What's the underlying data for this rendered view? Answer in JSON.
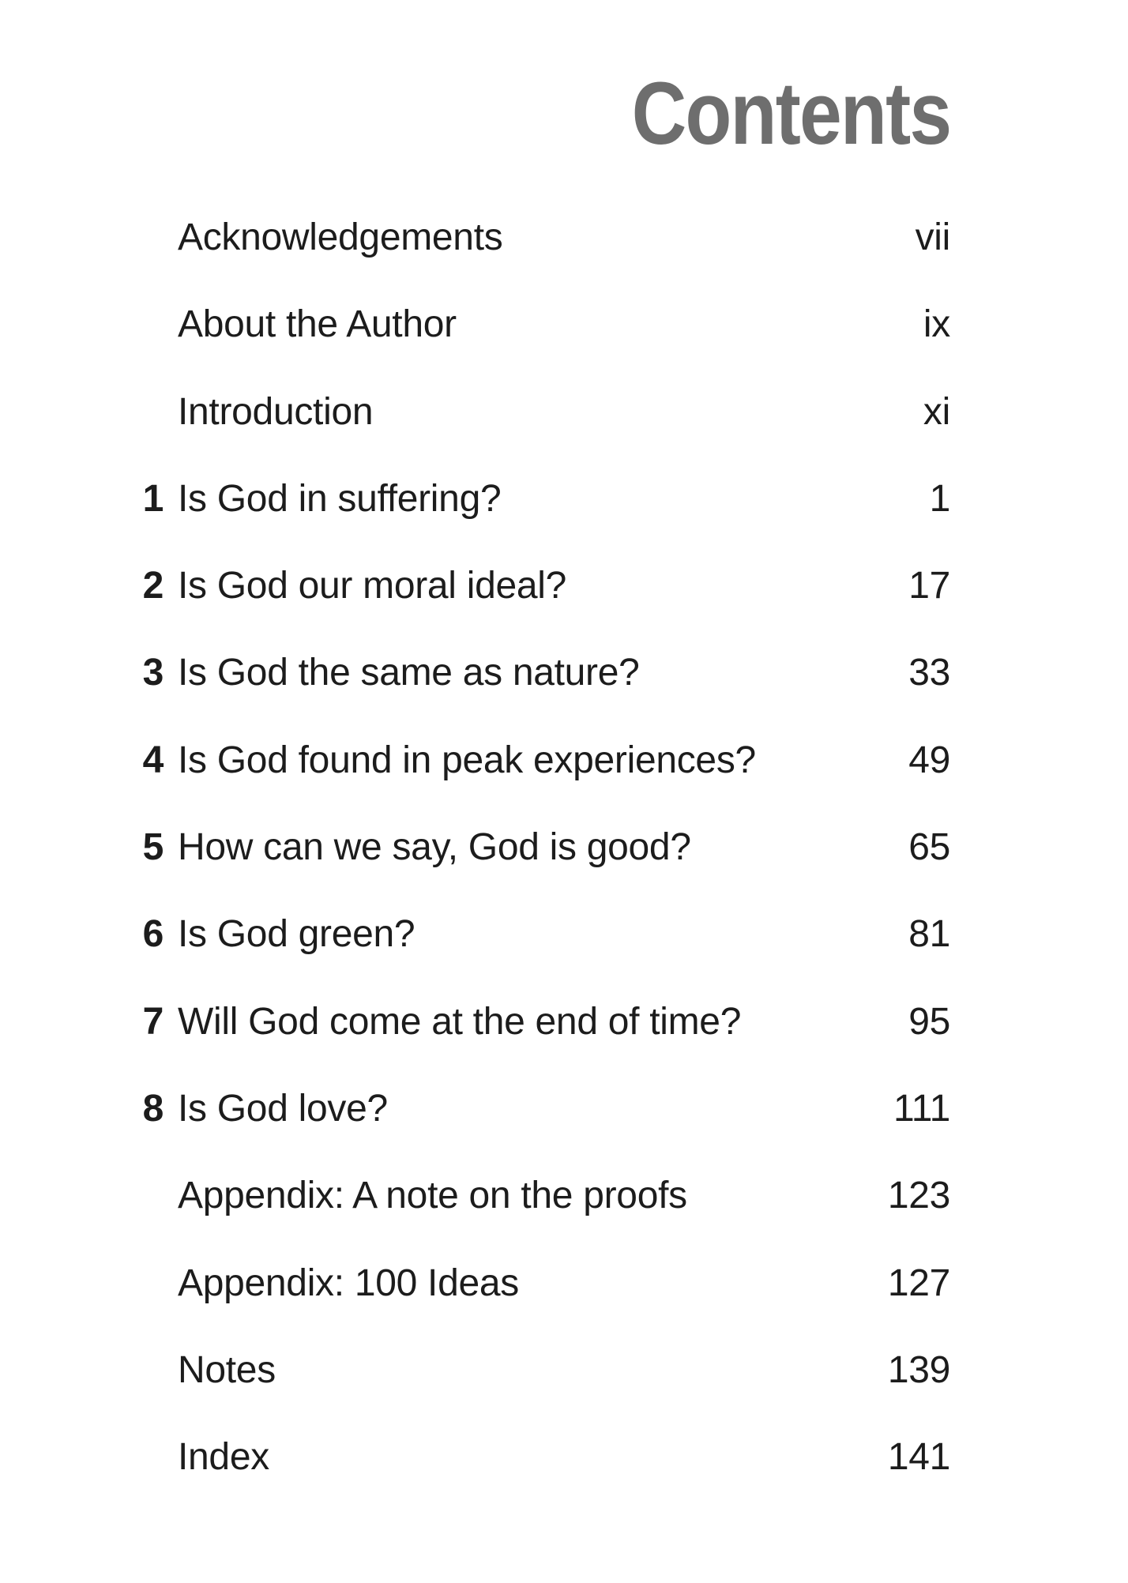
{
  "page": {
    "title": "Contents",
    "title_color": "#6e6e6e",
    "text_color": "#1c1c1c",
    "background_color": "#ffffff"
  },
  "toc": {
    "entries": [
      {
        "number": "",
        "label": "Acknowledgements",
        "page": "vii"
      },
      {
        "number": "",
        "label": "About the Author",
        "page": "ix"
      },
      {
        "number": "",
        "label": "Introduction",
        "page": "xi"
      },
      {
        "number": "1",
        "label": "Is God in suffering?",
        "page": "1"
      },
      {
        "number": "2",
        "label": "Is God our moral ideal?",
        "page": "17"
      },
      {
        "number": "3",
        "label": "Is God the same as nature?",
        "page": "33"
      },
      {
        "number": "4",
        "label": "Is God found in peak experiences?",
        "page": "49"
      },
      {
        "number": "5",
        "label": "How can we say, God is good?",
        "page": "65"
      },
      {
        "number": "6",
        "label": "Is God green?",
        "page": "81"
      },
      {
        "number": "7",
        "label": "Will God come at the end of time?",
        "page": "95"
      },
      {
        "number": "8",
        "label": "Is God love?",
        "page": "111"
      },
      {
        "number": "",
        "label": "Appendix: A note on the proofs",
        "page": "123"
      },
      {
        "number": "",
        "label": "Appendix: 100 Ideas",
        "page": "127"
      },
      {
        "number": "",
        "label": "Notes",
        "page": "139"
      },
      {
        "number": "",
        "label": "Index",
        "page": "141"
      }
    ]
  }
}
